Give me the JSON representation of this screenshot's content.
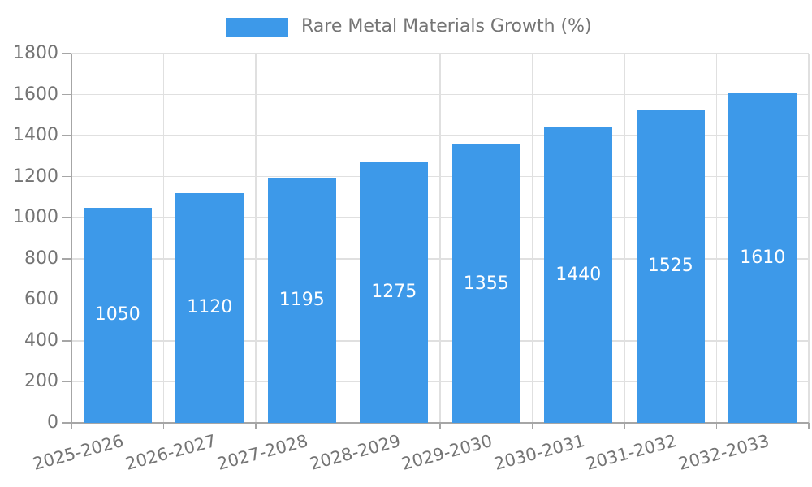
{
  "legend": {
    "label": "Rare Metal Materials Growth (%)",
    "position": "top-center"
  },
  "chart_data": {
    "type": "bar",
    "title": "Rare Metal Materials Growth (%)",
    "series_name": "Rare Metal Materials Growth (%)",
    "categories": [
      "2025-2026",
      "2026-2027",
      "2027-2028",
      "2028-2029",
      "2029-2030",
      "2030-2031",
      "2031-2032",
      "2032-2033"
    ],
    "values": [
      1050,
      1120,
      1195,
      1275,
      1355,
      1440,
      1525,
      1610
    ],
    "xlabel": "",
    "ylabel": "",
    "ylim": [
      0,
      1800
    ],
    "yticks": [
      0,
      200,
      400,
      600,
      800,
      1000,
      1200,
      1400,
      1600,
      1800
    ],
    "grid": true,
    "value_labels_shown": true,
    "x_label_rotation_deg": 15,
    "colors": {
      "bar": "#3d99e9",
      "value_label": "#ffffff",
      "tick_label": "#747474",
      "legend_text": "#757575",
      "gridline": "#e0e0e0",
      "axis_line": "#a6a6a6"
    }
  }
}
